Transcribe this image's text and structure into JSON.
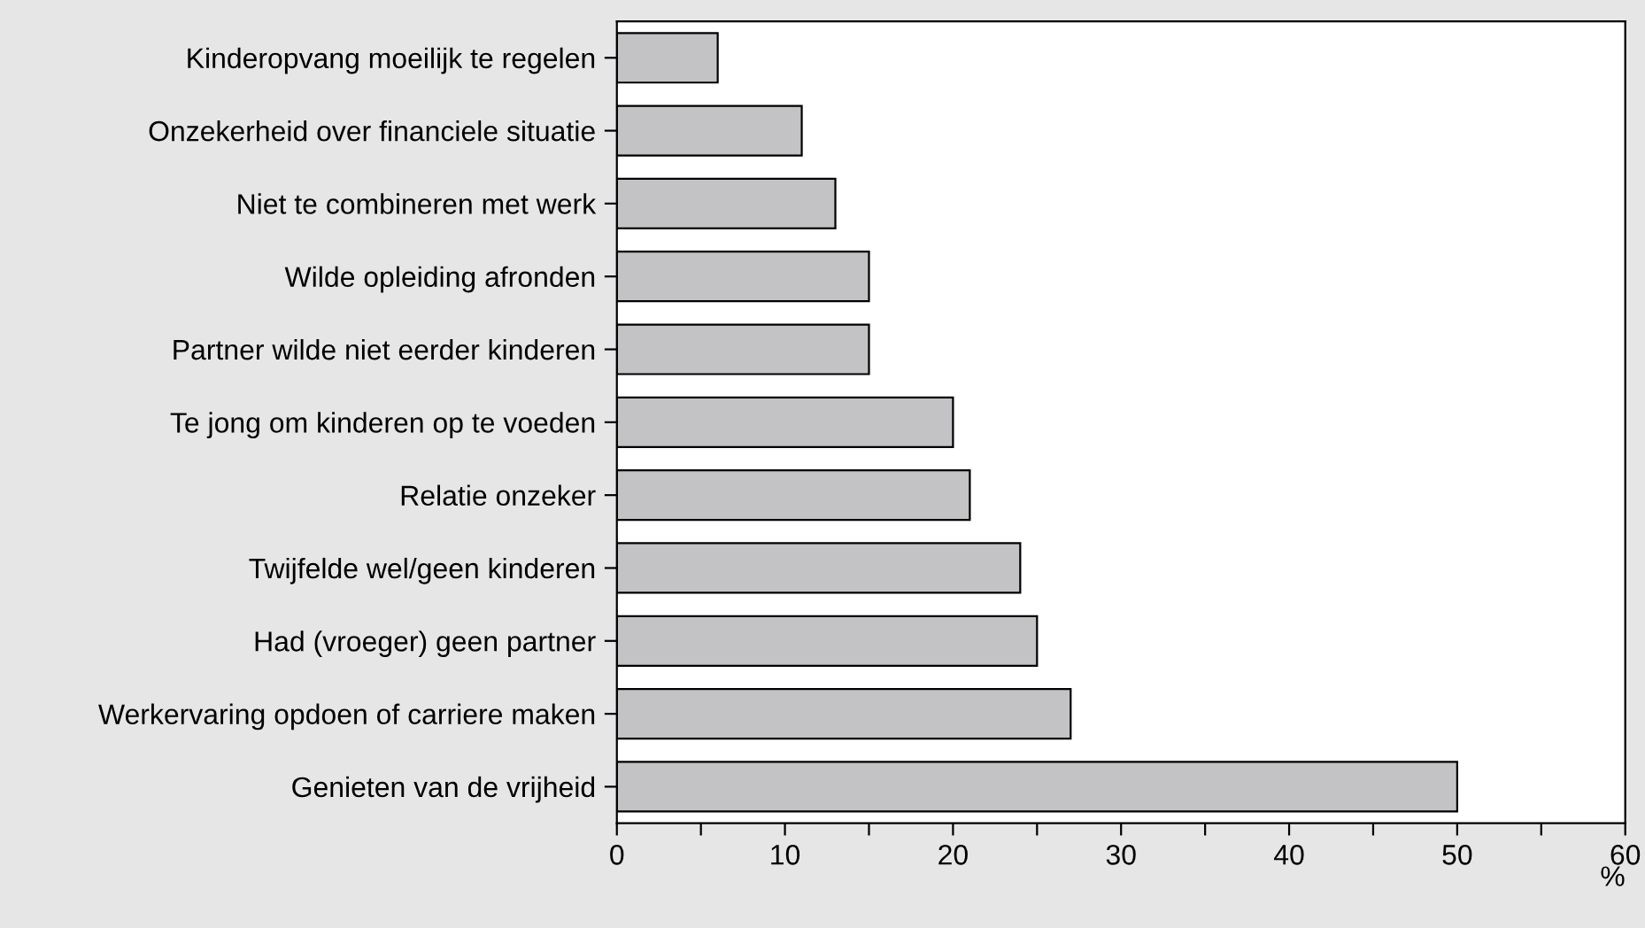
{
  "chart_data": {
    "type": "bar",
    "orientation": "horizontal",
    "categories": [
      "Kinderopvang moeilijk te regelen",
      "Onzekerheid over financiele situatie",
      "Niet te combineren met werk",
      "Wilde opleiding afronden",
      "Partner wilde niet eerder kinderen",
      "Te jong om kinderen op te voeden",
      "Relatie onzeker",
      "Twijfelde wel/geen kinderen",
      "Had (vroeger) geen partner",
      "Werkervaring opdoen of carriere maken",
      "Genieten van de vrijheid"
    ],
    "values": [
      6,
      11,
      13,
      15,
      15,
      20,
      21,
      24,
      25,
      27,
      50
    ],
    "color": "#c3c3c6",
    "xlim": [
      0,
      60
    ],
    "xticks": [
      0,
      {
        "value": 5,
        "label": null
      },
      10,
      {
        "value": 15,
        "label": null
      },
      20,
      {
        "value": 25,
        "label": null
      },
      30,
      {
        "value": 35,
        "label": null
      },
      40,
      {
        "value": 45,
        "label": null
      },
      50,
      {
        "value": 55,
        "label": null
      },
      60
    ],
    "xlabel": "%",
    "grid": false,
    "legend": false
  }
}
